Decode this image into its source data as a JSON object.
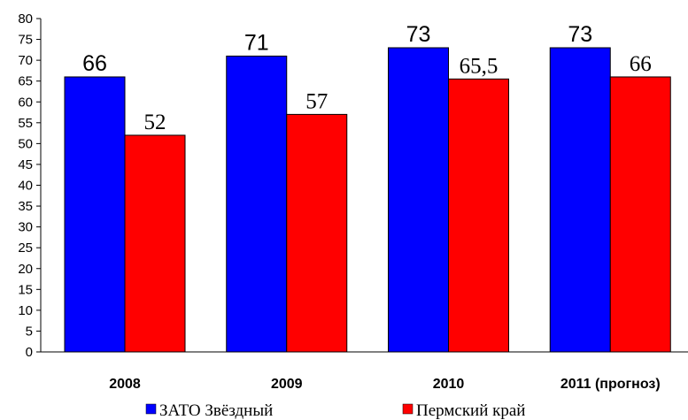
{
  "chart_data": {
    "type": "bar",
    "categories": [
      "2008",
      "2009",
      "2010",
      "2011 (прогноз)"
    ],
    "series": [
      {
        "name": "ЗАТО Звёздный",
        "values": [
          66,
          71,
          73,
          73
        ],
        "labels": [
          "66",
          "71",
          "73",
          "73"
        ],
        "color": "#0000ff"
      },
      {
        "name": "Пермский край",
        "values": [
          52,
          57,
          65.5,
          66
        ],
        "labels": [
          "52",
          "57",
          "65,5",
          "66"
        ],
        "color": "#ff0000"
      }
    ],
    "ylim": [
      0,
      80
    ],
    "yticks": [
      0,
      5,
      10,
      15,
      20,
      25,
      30,
      35,
      40,
      45,
      50,
      55,
      60,
      65,
      70,
      75,
      80
    ],
    "grid": false,
    "legend": "bottom"
  }
}
